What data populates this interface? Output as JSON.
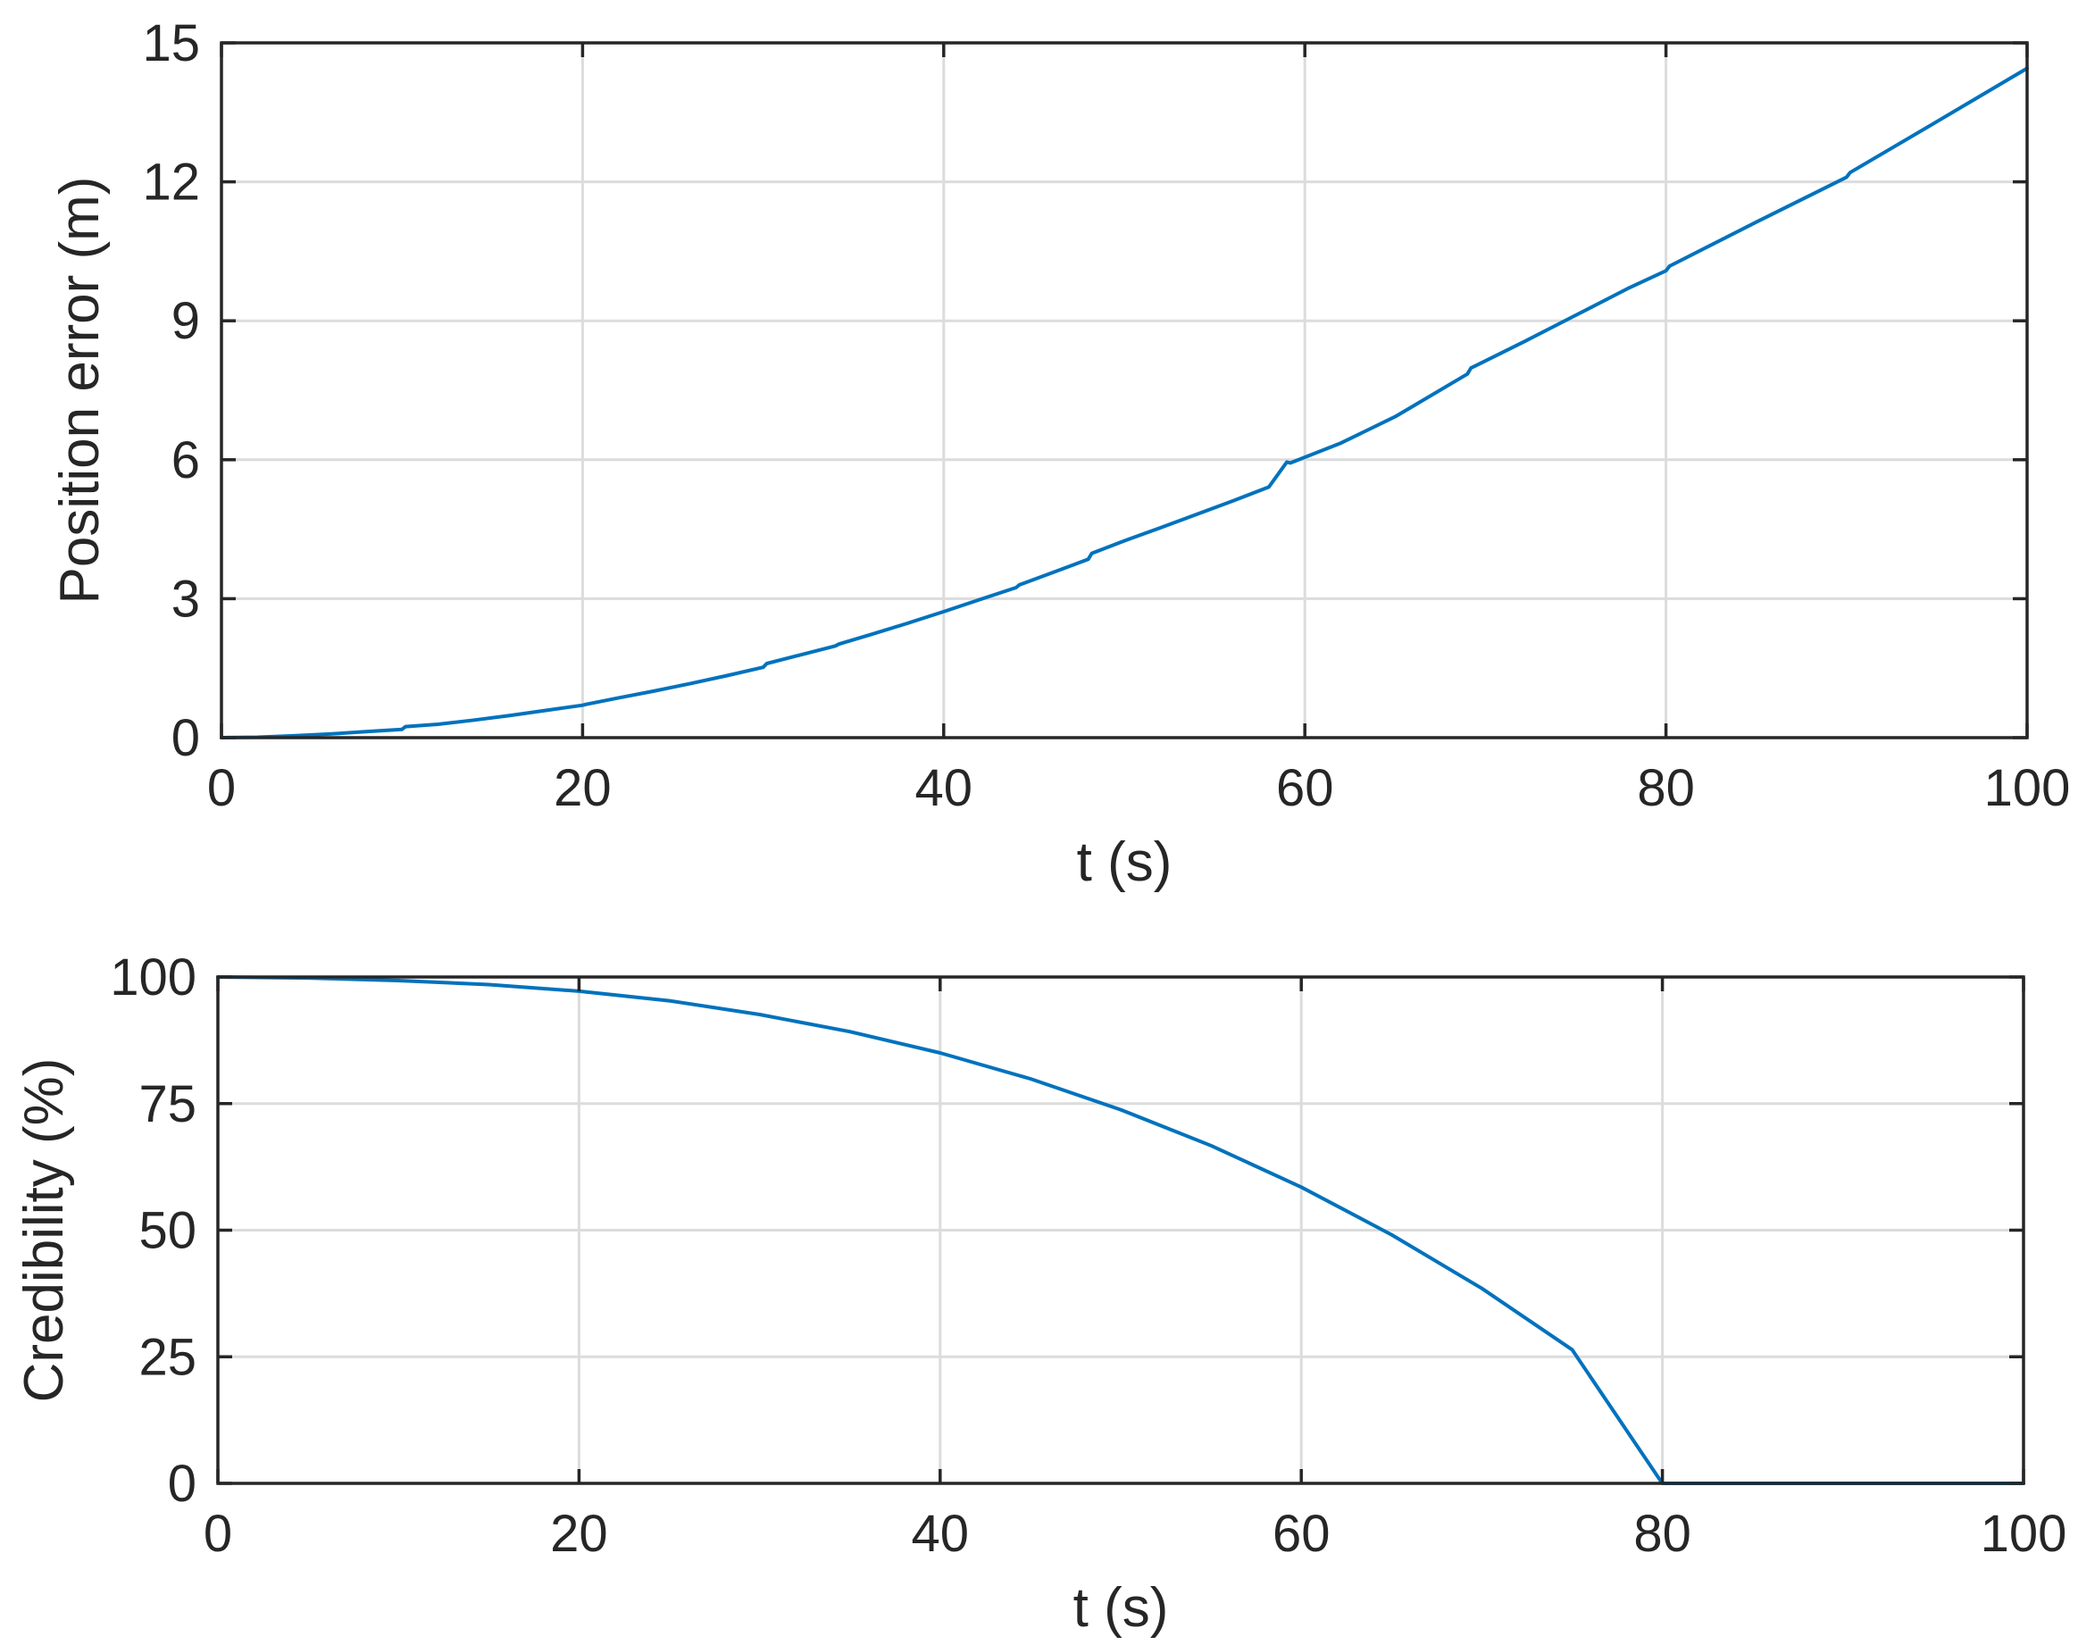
{
  "chart_data": [
    {
      "type": "line",
      "xlabel": "t (s)",
      "ylabel": "Position error (m)",
      "xlim": [
        0,
        100
      ],
      "ylim": [
        0,
        15
      ],
      "xticks": [
        "0",
        "20",
        "40",
        "60",
        "80",
        "100"
      ],
      "yticks": [
        "0",
        "3",
        "6",
        "9",
        "12",
        "15"
      ],
      "grid": true,
      "line_color": "#0072BD",
      "series": [
        {
          "x": [
            0,
            2,
            4,
            6,
            8,
            10,
            10.2,
            12,
            14,
            16,
            18,
            20,
            20.2,
            22,
            24,
            26,
            28,
            30,
            30.2,
            32,
            34,
            34.2,
            36,
            38,
            40,
            42,
            44,
            44.2,
            46,
            48,
            48.2,
            50,
            52,
            54,
            56,
            58,
            59,
            59.2,
            62,
            65,
            69,
            69.2,
            72,
            75,
            78,
            80,
            80.2,
            85,
            90,
            90.2,
            95,
            100
          ],
          "y": [
            0,
            0.01,
            0.04,
            0.08,
            0.13,
            0.18,
            0.24,
            0.29,
            0.38,
            0.48,
            0.59,
            0.7,
            0.72,
            0.86,
            1.01,
            1.17,
            1.34,
            1.52,
            1.6,
            1.78,
            1.98,
            2.02,
            2.23,
            2.47,
            2.72,
            2.98,
            3.24,
            3.3,
            3.56,
            3.85,
            3.98,
            4.25,
            4.53,
            4.82,
            5.11,
            5.41,
            5.95,
            5.93,
            6.36,
            6.93,
            7.85,
            7.98,
            8.52,
            9.12,
            9.72,
            10.08,
            10.18,
            11.13,
            12.1,
            12.2,
            13.3,
            14.45
          ]
        }
      ]
    },
    {
      "type": "line",
      "xlabel": "t (s)",
      "ylabel": "Credibility (%)",
      "xlim": [
        0,
        100
      ],
      "ylim": [
        0,
        100
      ],
      "xticks": [
        "0",
        "20",
        "40",
        "60",
        "80",
        "100"
      ],
      "yticks": [
        "0",
        "25",
        "50",
        "75",
        "100"
      ],
      "grid": true,
      "line_color": "#0072BD",
      "series": [
        {
          "x": [
            0,
            5,
            10,
            15,
            20,
            25,
            30,
            35,
            40,
            45,
            50,
            55,
            60,
            65,
            70,
            75,
            79.9,
            80,
            85,
            90,
            95,
            100
          ],
          "y": [
            100,
            99.8,
            99.3,
            98.5,
            97.2,
            95.3,
            92.6,
            89.2,
            85,
            79.9,
            73.8,
            66.7,
            58.5,
            49.1,
            38.5,
            26.4,
            0.5,
            0,
            0,
            0,
            0,
            0
          ]
        }
      ]
    }
  ]
}
